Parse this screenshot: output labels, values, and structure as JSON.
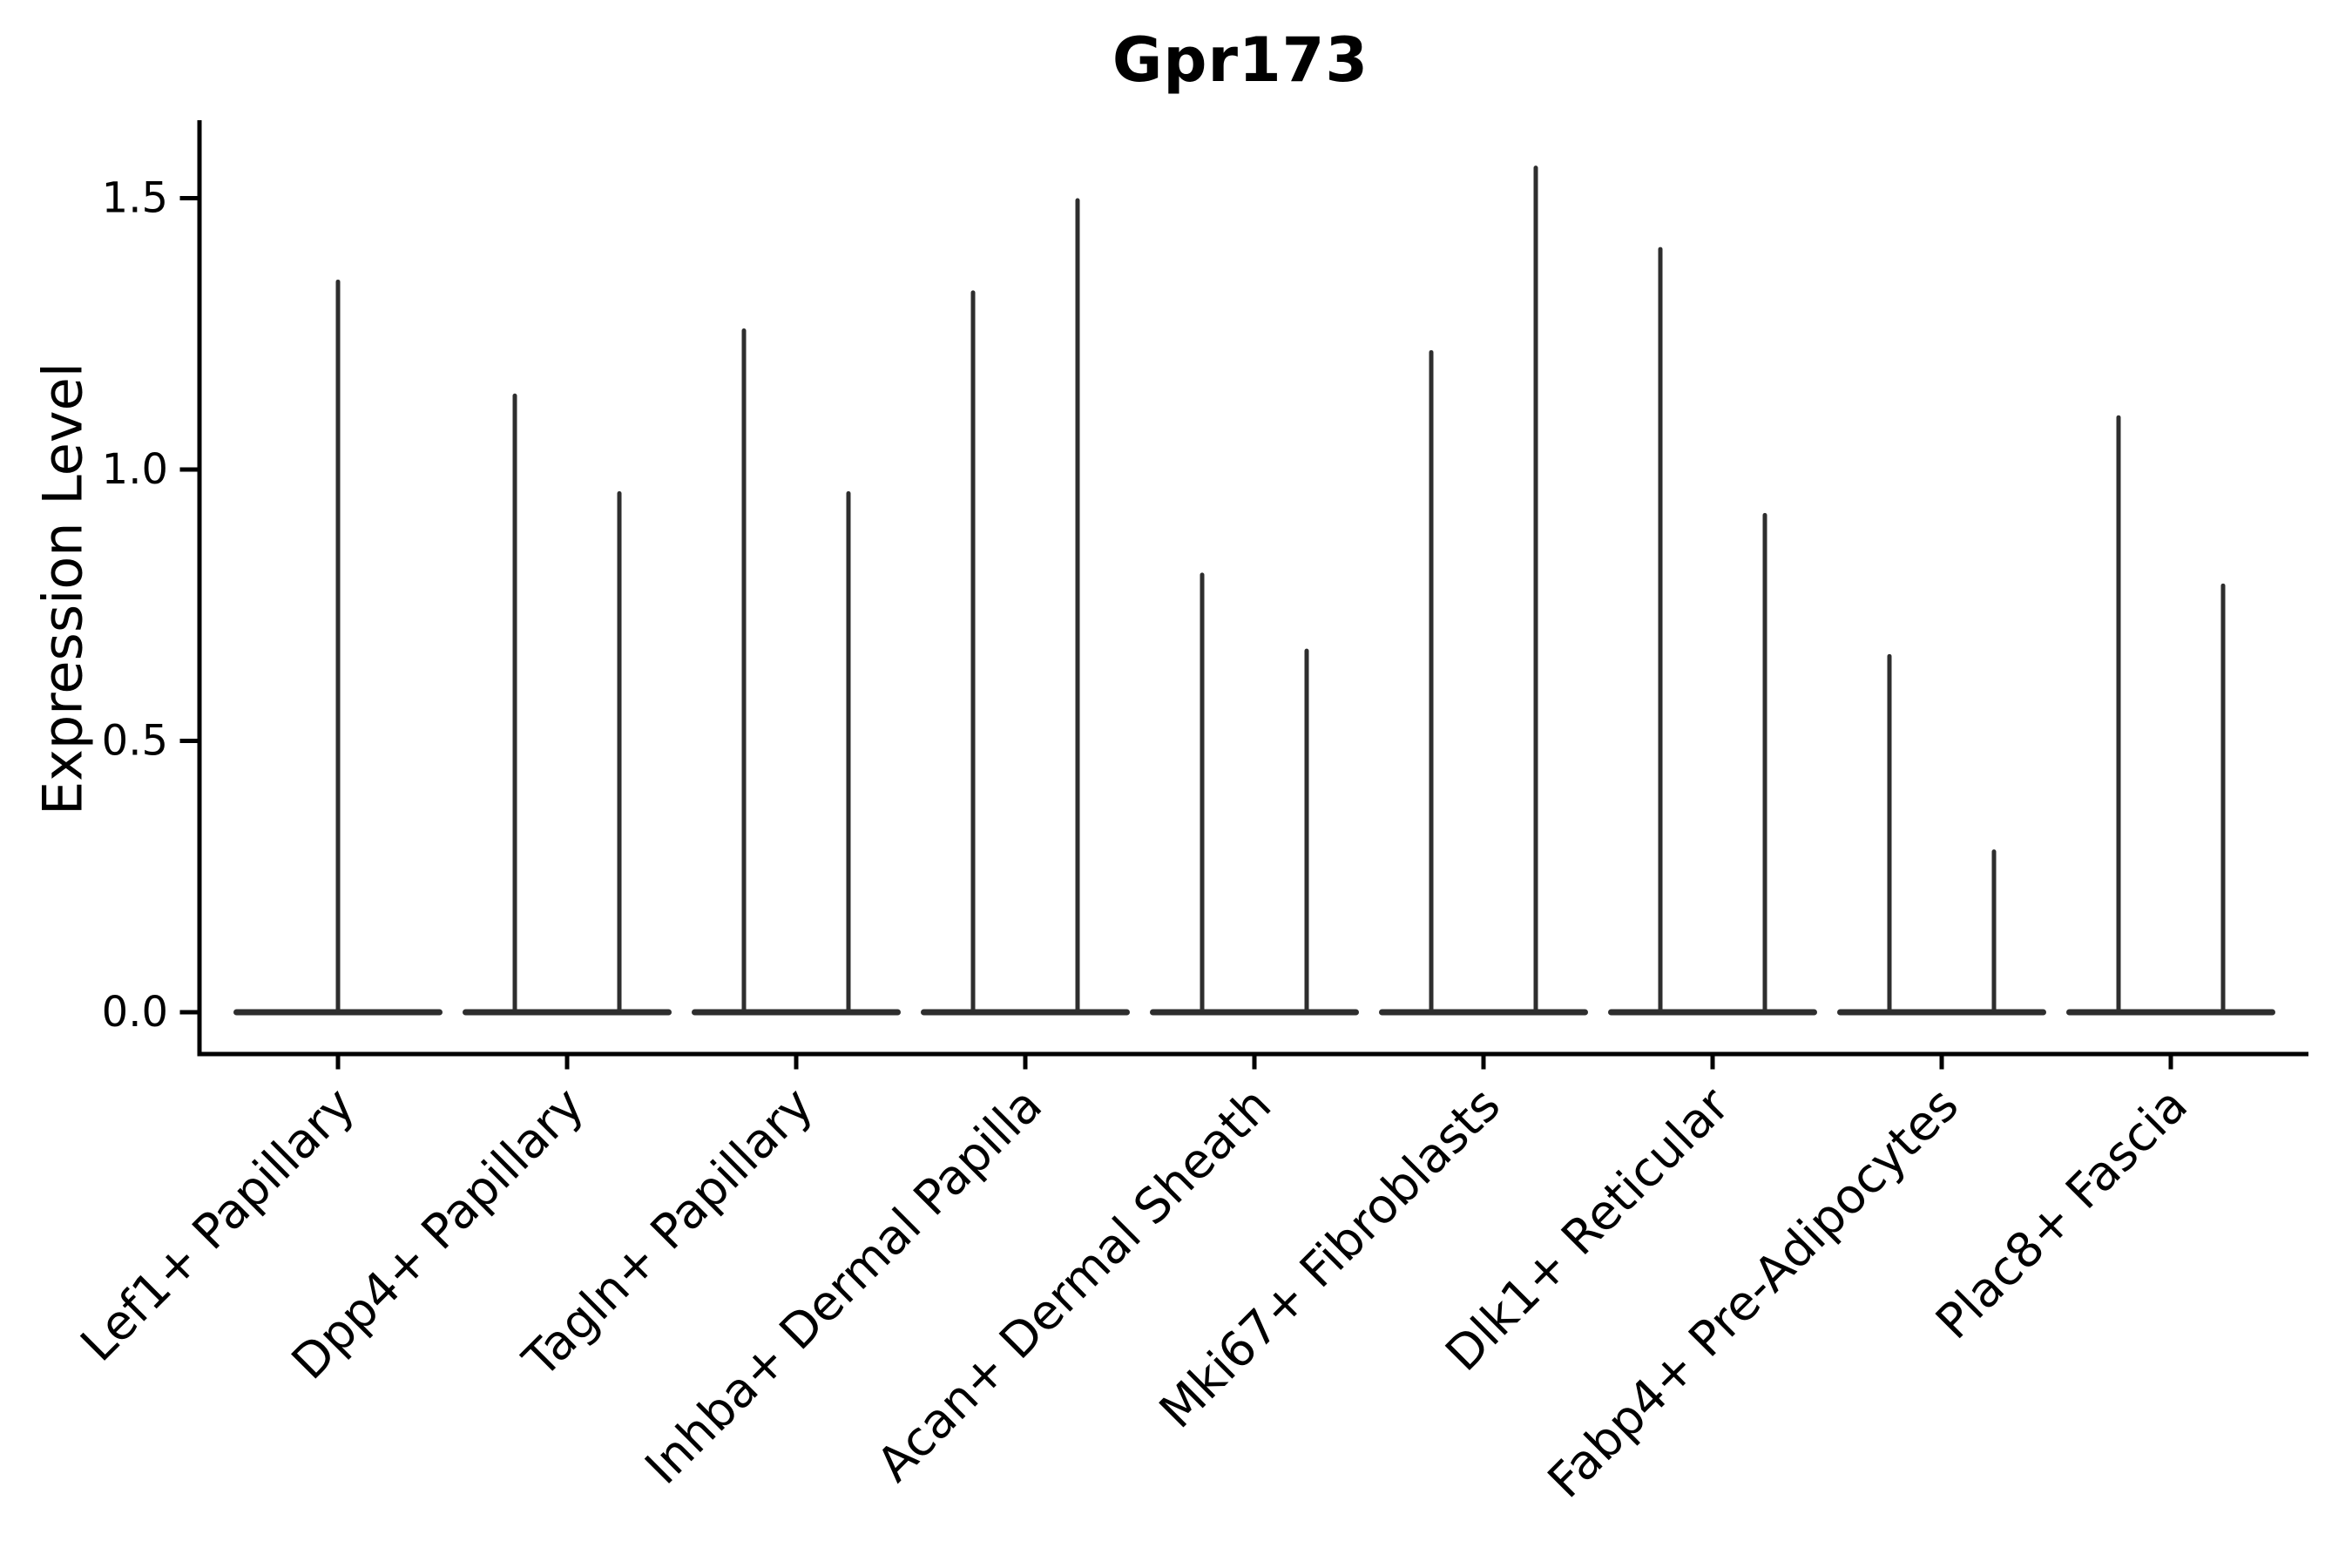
{
  "chart_data": {
    "type": "violin",
    "title": "Gpr173",
    "ylabel": "Expression Level",
    "xlabel": "",
    "ytick_labels": [
      "0.0",
      "0.5",
      "1.0",
      "1.5"
    ],
    "ytick_values": [
      0.0,
      0.5,
      1.0,
      1.5
    ],
    "ylim": [
      -0.08,
      1.64
    ],
    "grid": false,
    "legend_position": "none",
    "x_label_rotation_deg": 45,
    "categories": [
      "Lef1+ Papillary",
      "Dpp4+ Papillary",
      "Tagln+ Papillary",
      "Inhba+ Dermal Papilla",
      "Acan+ Dermal Sheath",
      "Mki67+ Fibroblasts",
      "Dlk1+ Reticular",
      "Fabp4+ Pre-Adipocytes",
      "Plac8+ Fascia"
    ],
    "series": [
      {
        "category": "Lef1+ Papillary",
        "violin_peak_expression": [
          1.35
        ]
      },
      {
        "category": "Dpp4+ Papillary",
        "violin_peak_expression": [
          1.14,
          0.96
        ]
      },
      {
        "category": "Tagln+ Papillary",
        "violin_peak_expression": [
          1.26,
          0.96
        ]
      },
      {
        "category": "Inhba+ Dermal Papilla",
        "violin_peak_expression": [
          1.33,
          1.5
        ]
      },
      {
        "category": "Acan+ Dermal Sheath",
        "violin_peak_expression": [
          0.81,
          0.67
        ]
      },
      {
        "category": "Mki67+ Fibroblasts",
        "violin_peak_expression": [
          1.22,
          1.56
        ]
      },
      {
        "category": "Dlk1+ Reticular",
        "violin_peak_expression": [
          1.41,
          0.92
        ]
      },
      {
        "category": "Fabp4+ Pre-Adipocytes",
        "violin_peak_expression": [
          0.66,
          0.3
        ]
      },
      {
        "category": "Plac8+ Fascia",
        "violin_peak_expression": [
          1.1,
          0.79
        ]
      }
    ],
    "violin_body_value": 0.0,
    "colors": {
      "violin": "#2e2e2e",
      "axis": "#000000",
      "text": "#000000",
      "background": "#ffffff"
    }
  }
}
